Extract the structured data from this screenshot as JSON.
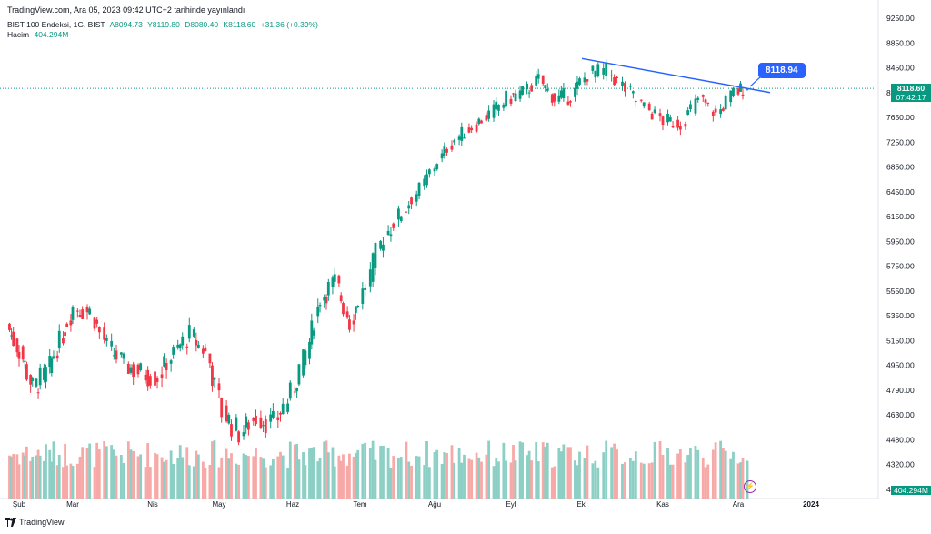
{
  "header": {
    "published": "TradingView.com, Ara 05, 2023 09:42 UTC+2 tarihinde yayınlandı"
  },
  "legend": {
    "symbol": "BIST 100 Endeksi, 1G, BIST",
    "open": "A8094.73",
    "high": "Y8119.80",
    "low": "D8080.40",
    "close": "K8118.60",
    "change": "+31.36 (+0.39%)",
    "volume_label": "Hacim",
    "volume_value": "404.294M"
  },
  "badges": {
    "last_price": "8118.60",
    "countdown": "07:42:17",
    "volume": "404.294M",
    "callout": "8118.94"
  },
  "footer": {
    "brand": "TradingView"
  },
  "colors": {
    "up": "#089981",
    "down": "#f23645",
    "vol_up": "#8ccfc4",
    "vol_down": "#f7a9a7",
    "trendline": "#2962ff",
    "price_line": "#089981"
  },
  "chart_data": {
    "type": "candlestick",
    "title": "BIST 100 Endeksi, 1G, BIST",
    "y_ticks": [
      "9250.00",
      "8850.00",
      "8450.00",
      "8050.00",
      "7650.00",
      "7250.00",
      "6850.00",
      "6450.00",
      "6150.00",
      "5950.00",
      "5750.00",
      "5550.00",
      "5350.00",
      "5150.00",
      "4950.00",
      "4790.00",
      "4630.00",
      "4480.00",
      "4320.00",
      "4180.00"
    ],
    "x_ticks": [
      {
        "label": "Şub",
        "date": "2023-02-01"
      },
      {
        "label": "Mar",
        "date": "2023-03-01"
      },
      {
        "label": "Nis",
        "date": "2023-04-03"
      },
      {
        "label": "May",
        "date": "2023-05-02"
      },
      {
        "label": "Haz",
        "date": "2023-06-01"
      },
      {
        "label": "Tem",
        "date": "2023-07-03"
      },
      {
        "label": "Ağu",
        "date": "2023-08-01"
      },
      {
        "label": "Eyl",
        "date": "2023-09-01"
      },
      {
        "label": "Eki",
        "date": "2023-10-02"
      },
      {
        "label": "Kas",
        "date": "2023-11-01"
      },
      {
        "label": "Ara",
        "date": "2023-12-01"
      },
      {
        "label": "2024",
        "date": "2024-01-02"
      }
    ],
    "y_scale": "log",
    "series_close": [
      {
        "date": "2023-01-27",
        "close": 5280
      },
      {
        "date": "2023-02-03",
        "close": 5060
      },
      {
        "date": "2023-02-10",
        "close": 4800
      },
      {
        "date": "2023-02-17",
        "close": 4900
      },
      {
        "date": "2023-02-24",
        "close": 5140
      },
      {
        "date": "2023-03-03",
        "close": 5420
      },
      {
        "date": "2023-03-10",
        "close": 5380
      },
      {
        "date": "2023-03-17",
        "close": 5100
      },
      {
        "date": "2023-03-24",
        "close": 4960
      },
      {
        "date": "2023-03-31",
        "close": 4900
      },
      {
        "date": "2023-04-07",
        "close": 4880
      },
      {
        "date": "2023-04-14",
        "close": 5050
      },
      {
        "date": "2023-04-21",
        "close": 5200
      },
      {
        "date": "2023-04-28",
        "close": 5050
      },
      {
        "date": "2023-05-05",
        "close": 4650
      },
      {
        "date": "2023-05-12",
        "close": 4520
      },
      {
        "date": "2023-05-19",
        "close": 4620
      },
      {
        "date": "2023-05-26",
        "close": 4580
      },
      {
        "date": "2023-06-02",
        "close": 4760
      },
      {
        "date": "2023-06-09",
        "close": 5050
      },
      {
        "date": "2023-06-16",
        "close": 5500
      },
      {
        "date": "2023-06-23",
        "close": 5620
      },
      {
        "date": "2023-06-30",
        "close": 5300
      },
      {
        "date": "2023-07-07",
        "close": 5600
      },
      {
        "date": "2023-07-14",
        "close": 6000
      },
      {
        "date": "2023-07-21",
        "close": 6200
      },
      {
        "date": "2023-07-28",
        "close": 6500
      },
      {
        "date": "2023-08-04",
        "close": 6950
      },
      {
        "date": "2023-08-11",
        "close": 7300
      },
      {
        "date": "2023-08-18",
        "close": 7500
      },
      {
        "date": "2023-08-25",
        "close": 7700
      },
      {
        "date": "2023-09-01",
        "close": 7950
      },
      {
        "date": "2023-09-08",
        "close": 8050
      },
      {
        "date": "2023-09-15",
        "close": 8250
      },
      {
        "date": "2023-09-22",
        "close": 7950
      },
      {
        "date": "2023-09-29",
        "close": 8000
      },
      {
        "date": "2023-10-06",
        "close": 8350
      },
      {
        "date": "2023-10-13",
        "close": 8400
      },
      {
        "date": "2023-10-20",
        "close": 8100
      },
      {
        "date": "2023-10-27",
        "close": 7800
      },
      {
        "date": "2023-11-03",
        "close": 7600
      },
      {
        "date": "2023-11-10",
        "close": 7550
      },
      {
        "date": "2023-11-17",
        "close": 7950
      },
      {
        "date": "2023-11-24",
        "close": 7700
      },
      {
        "date": "2023-12-01",
        "close": 8050
      },
      {
        "date": "2023-12-05",
        "close": 8118.6
      }
    ],
    "trendline": {
      "start": {
        "date": "2023-10-02",
        "price": 8600
      },
      "end": {
        "date": "2023-12-15",
        "price": 8050
      }
    },
    "last_close": 8118.6
  }
}
